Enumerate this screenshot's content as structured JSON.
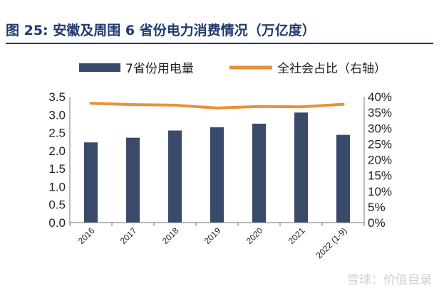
{
  "header": {
    "title": "图 25:  安徽及周围 6 省份电力消费情况（万亿度）"
  },
  "watermark": "雪球：价值目录",
  "chart_data": {
    "type": "bar",
    "title": "图 25:  安徽及周围 6 省份电力消费情况（万亿度）",
    "categories": [
      "2016",
      "2017",
      "2018",
      "2019",
      "2020",
      "2021",
      "2022 (1-9)"
    ],
    "series": [
      {
        "name": "7省份用电量",
        "kind": "bar",
        "axis": "left",
        "color": "#3a4a6b",
        "values": [
          2.23,
          2.36,
          2.56,
          2.65,
          2.75,
          3.06,
          2.44
        ]
      },
      {
        "name": "全社会占比（右轴）",
        "kind": "line",
        "axis": "right",
        "color": "#e8913a",
        "values": [
          37.9,
          37.5,
          37.3,
          36.4,
          36.9,
          36.8,
          37.6
        ]
      }
    ],
    "ylim": [
      0,
      3.5
    ],
    "yticks": [
      "0.0",
      "0.5",
      "1.0",
      "1.5",
      "2.0",
      "2.5",
      "3.0",
      "3.5"
    ],
    "y2lim": [
      0,
      40
    ],
    "y2ticks": [
      "0%",
      "5%",
      "10%",
      "15%",
      "20%",
      "25%",
      "30%",
      "35%",
      "40%"
    ],
    "legend_position": "top",
    "grid": false
  }
}
